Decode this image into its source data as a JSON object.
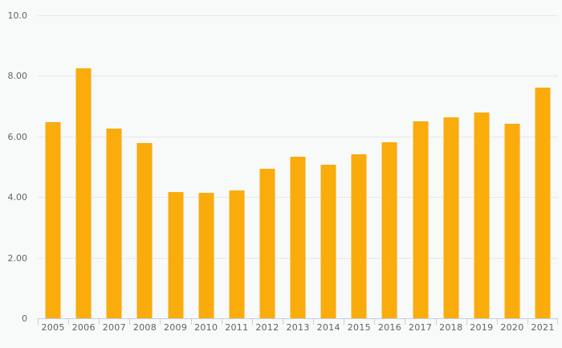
{
  "chart_data": {
    "type": "bar",
    "title": "",
    "xlabel": "",
    "ylabel": "",
    "categories": [
      "2005",
      "2006",
      "2007",
      "2008",
      "2009",
      "2010",
      "2011",
      "2012",
      "2013",
      "2014",
      "2015",
      "2016",
      "2017",
      "2018",
      "2019",
      "2020",
      "2021"
    ],
    "values": [
      6.5,
      8.27,
      6.29,
      5.8,
      4.19,
      4.16,
      4.24,
      4.96,
      5.36,
      5.1,
      5.44,
      5.84,
      6.53,
      6.67,
      6.83,
      6.44,
      7.63
    ],
    "ylim": [
      0,
      10
    ],
    "y_ticks": [
      {
        "label": "10.0",
        "value": 10
      },
      {
        "label": "8.00",
        "value": 8
      },
      {
        "label": "6.00",
        "value": 6
      },
      {
        "label": "4.00",
        "value": 4
      },
      {
        "label": "2.00",
        "value": 2
      },
      {
        "label": "0",
        "value": 0
      }
    ],
    "gridlines_at": [
      2,
      4,
      6,
      8,
      10
    ],
    "grid": "horizontal",
    "legend": "none",
    "colors": {
      "bar": "#f9ac0b",
      "background": "#f8f9f9",
      "gridline": "#e8e8e7",
      "axis": "#c7cee3",
      "text": "#63656a"
    }
  }
}
